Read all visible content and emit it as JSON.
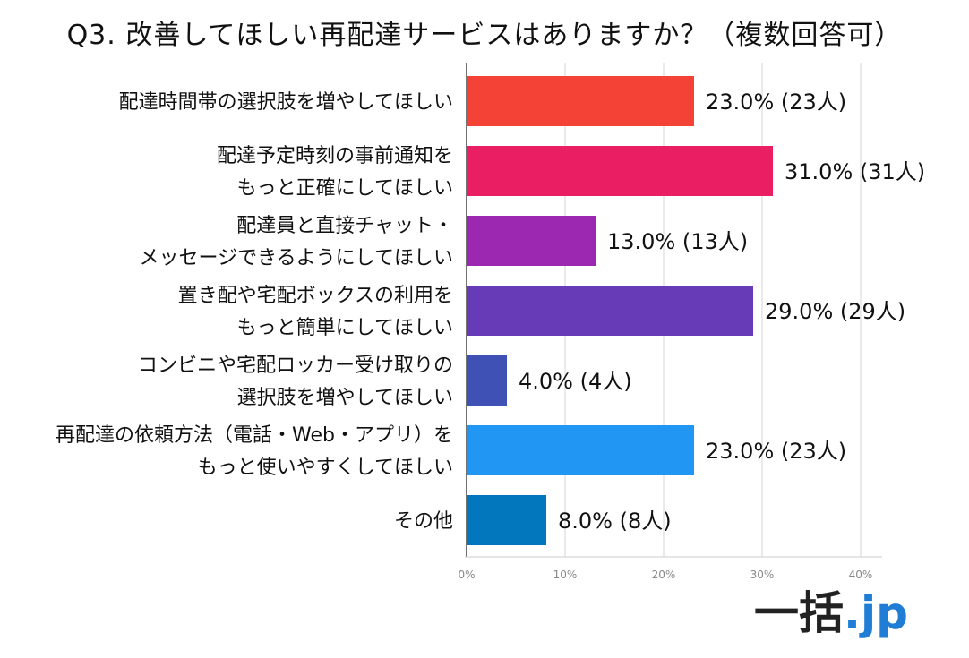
{
  "title": "Q3. 改善してほしい再配達サービスはありますか？（複数回答可）",
  "logo": {
    "mark": "一括",
    "tld": ".jp"
  },
  "chart_data": {
    "type": "bar",
    "orientation": "horizontal",
    "categories": [
      [
        "配達時間帯の選択肢を増やしてほしい"
      ],
      [
        "配達予定時刻の事前通知を",
        "もっと正確にしてほしい"
      ],
      [
        "配達員と直接チャット・",
        "メッセージできるようにしてほしい"
      ],
      [
        "置き配や宅配ボックスの利用を",
        "もっと簡単にしてほしい"
      ],
      [
        "コンビニや宅配ロッカー受け取りの",
        "選択肢を増やしてほしい"
      ],
      [
        "再配達の依頼方法（電話・Web・アプリ）を",
        "もっと使いやすくしてほしい"
      ],
      [
        "その他"
      ]
    ],
    "values": [
      23.0,
      31.0,
      13.0,
      29.0,
      4.0,
      23.0,
      8.0
    ],
    "data_labels": [
      "23.0% (23人)",
      "31.0% (31人)",
      "13.0% (13人)",
      "29.0% (29人)",
      "4.0% (4人)",
      "23.0% (23人)",
      "8.0% (8人)"
    ],
    "colors": [
      "#f44336",
      "#e91e63",
      "#9c27b0",
      "#673ab7",
      "#3f51b5",
      "#2196f3",
      "#0277bd"
    ],
    "xticks": [
      "0%",
      "10%",
      "20%",
      "30%",
      "40%"
    ],
    "xlim": [
      0,
      42
    ],
    "grid": true
  }
}
